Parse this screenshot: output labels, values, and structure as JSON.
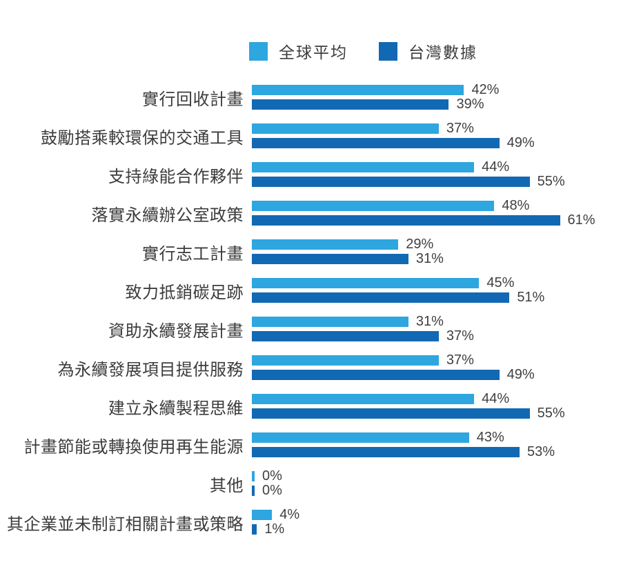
{
  "legend": {
    "items": [
      {
        "label": "全球平均",
        "color": "#2ea6df"
      },
      {
        "label": "台灣數據",
        "color": "#1269b3"
      }
    ]
  },
  "colors": {
    "global_average": "#2ea6df",
    "taiwan_data": "#1269b3",
    "category_text": "#3c3c3c",
    "value_text": "#3f3f3f",
    "background": "#ffffff"
  },
  "chart_data": {
    "type": "bar",
    "orientation": "horizontal",
    "unit": "%",
    "value_labels": true,
    "grid": false,
    "legend_position": "top-center",
    "xlim": [
      0,
      61
    ],
    "categories": [
      "實行回收計畫",
      "鼓勵搭乘較環保的交通工具",
      "支持綠能合作夥伴",
      "落實永續辦公室政策",
      "實行志工計畫",
      "致力抵銷碳足跡",
      "資助永續發展計畫",
      "為永續發展項目提供服務",
      "建立永續製程思維",
      "計畫節能或轉換使用再生能源",
      "其他",
      "其企業並未制訂相關計畫或策略"
    ],
    "series": [
      {
        "name": "全球平均",
        "color": "#2ea6df",
        "values": [
          42,
          37,
          44,
          48,
          29,
          45,
          31,
          37,
          44,
          43,
          0,
          4
        ]
      },
      {
        "name": "台灣數據",
        "color": "#1269b3",
        "values": [
          39,
          49,
          55,
          61,
          31,
          51,
          37,
          49,
          55,
          53,
          0,
          1
        ]
      }
    ]
  }
}
